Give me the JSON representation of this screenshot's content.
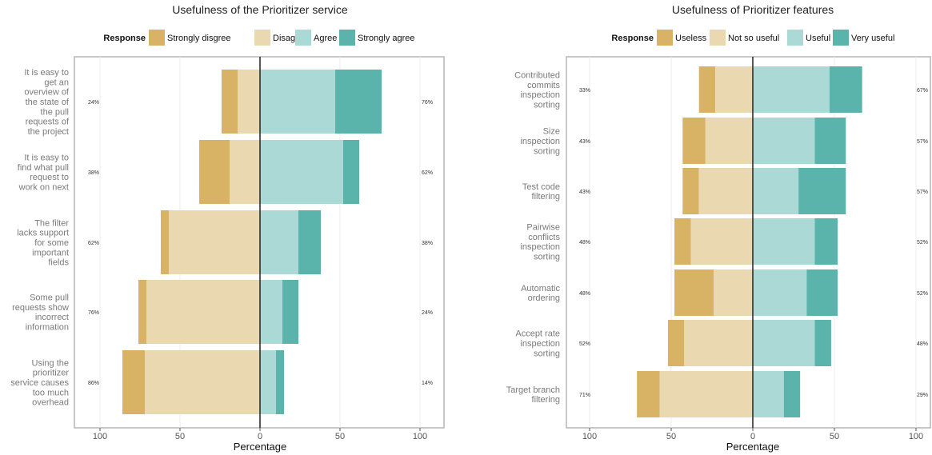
{
  "chart_data": [
    {
      "type": "bar",
      "orientation": "horizontal-diverging",
      "title": "Usefulness of the Prioritizer service",
      "legend_title": "Response",
      "legend_position": "top",
      "xlabel": "Percentage",
      "xlim": [
        -100,
        100
      ],
      "xticks": [
        -100,
        -50,
        0,
        50,
        100
      ],
      "xtick_labels": [
        "100",
        "50",
        "0",
        "50",
        "100"
      ],
      "levels": [
        "Strongly disgree",
        "Disagree",
        "Agree",
        "Strongly agree"
      ],
      "colors": [
        "#d8b365",
        "#ead9b0",
        "#abd9d6",
        "#5ab4ac"
      ],
      "categories": [
        [
          "It is easy to",
          "get an",
          "overview of",
          "the state of",
          "the pull",
          "requests of",
          "the project"
        ],
        [
          "It is easy to",
          "find what pull",
          "request to",
          "work on next"
        ],
        [
          "The filter",
          "lacks support",
          "for some",
          "important",
          "fields"
        ],
        [
          "Some pull",
          "requests show",
          "incorrect",
          "information"
        ],
        [
          "Using the",
          "prioritizer",
          "service causes",
          "too much",
          "overhead"
        ]
      ],
      "values": [
        [
          10,
          14,
          47,
          29
        ],
        [
          19,
          19,
          52,
          10
        ],
        [
          5,
          57,
          24,
          14
        ],
        [
          5,
          71,
          14,
          10
        ],
        [
          14,
          72,
          10,
          5
        ]
      ],
      "left_pct": [
        "24%",
        "38%",
        "62%",
        "76%",
        "86%"
      ],
      "right_pct": [
        "76%",
        "62%",
        "38%",
        "24%",
        "14%"
      ],
      "grid": true
    },
    {
      "type": "bar",
      "orientation": "horizontal-diverging",
      "title": "Usefulness of Prioritizer features",
      "legend_title": "Response",
      "legend_position": "top",
      "xlabel": "Percentage",
      "xlim": [
        -100,
        100
      ],
      "xticks": [
        -100,
        -50,
        0,
        50,
        100
      ],
      "xtick_labels": [
        "100",
        "50",
        "0",
        "50",
        "100"
      ],
      "levels": [
        "Useless",
        "Not so useful",
        "Useful",
        "Very useful"
      ],
      "colors": [
        "#d8b365",
        "#ead9b0",
        "#abd9d6",
        "#5ab4ac"
      ],
      "categories": [
        [
          "Contributed",
          "commits",
          "inspection",
          "sorting"
        ],
        [
          "Size",
          "inspection",
          "sorting"
        ],
        [
          "Test code",
          "filtering"
        ],
        [
          "Pairwise",
          "conflicts",
          "inspection",
          "sorting"
        ],
        [
          "Automatic",
          "ordering"
        ],
        [
          "Accept rate",
          "inspection",
          "sorting"
        ],
        [
          "Target branch",
          "filtering"
        ]
      ],
      "values": [
        [
          10,
          23,
          47,
          20
        ],
        [
          14,
          29,
          38,
          19
        ],
        [
          10,
          33,
          28,
          29
        ],
        [
          10,
          38,
          38,
          14
        ],
        [
          24,
          24,
          33,
          19
        ],
        [
          10,
          42,
          38,
          10
        ],
        [
          14,
          57,
          19,
          10
        ]
      ],
      "left_pct": [
        "33%",
        "43%",
        "43%",
        "48%",
        "48%",
        "52%",
        "71%"
      ],
      "right_pct": [
        "67%",
        "57%",
        "57%",
        "52%",
        "52%",
        "48%",
        "29%"
      ],
      "grid": true
    }
  ]
}
